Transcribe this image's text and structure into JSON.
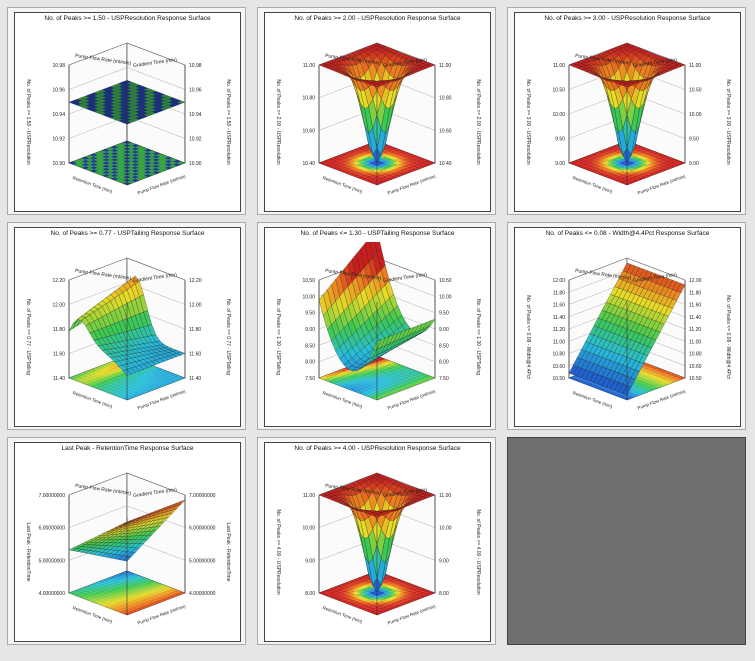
{
  "chart_data": [
    {
      "type": "surface",
      "title": "No. of Peaks >= 1.50 - USPResolution Response Surface",
      "surface": "flat",
      "palette": "blue-green",
      "factor_x": "Pump Flow Rate (ml/min)",
      "factor_y": "Gradient Time (min)",
      "factor_z": "Retention Time (min)",
      "zlabel": "No. of Peaks >= 1.50 - USPResolution",
      "zticks": [
        "10.98",
        "10.96",
        "10.94",
        "10.92",
        "10.90"
      ]
    },
    {
      "type": "surface",
      "title": "No. of Peaks >= 2.00 - USPResolution Response Surface",
      "surface": "cone",
      "palette": "rainbow",
      "factor_x": "Pump Flow Rate (ml/min)",
      "factor_y": "Gradient Time (min)",
      "factor_z": "Retention Time (min)",
      "zlabel": "No. of Peaks >= 2.00 - USPResolution",
      "zticks": [
        "11.00",
        "10.80",
        "10.60",
        "10.40"
      ]
    },
    {
      "type": "surface",
      "title": "No. of Peaks >= 3.00 - USPResolution Response Surface",
      "surface": "cone",
      "palette": "rainbow",
      "factor_x": "Pump Flow Rate (ml/min)",
      "factor_y": "Gradient Time (min)",
      "factor_z": "Retention Time (min)",
      "zlabel": "No. of Peaks >= 3.00 - USPResolution",
      "zticks": [
        "11.00",
        "10.50",
        "10.00",
        "9.50",
        "9.00"
      ]
    },
    {
      "type": "surface",
      "title": "No. of Peaks >= 0.77 - USPTailing Response Surface",
      "surface": "ridge",
      "palette": "rainbow",
      "factor_x": "Pump Flow Rate (ml/min)",
      "factor_y": "Gradient Time (min)",
      "factor_z": "Retention Time (min)",
      "zlabel": "No. of Peaks >= 0.77 - USPTailing",
      "zticks": [
        "12.20",
        "12.00",
        "11.80",
        "11.60",
        "11.40"
      ]
    },
    {
      "type": "surface",
      "title": "No. of Peaks <= 1.30 - USPTailing Response Surface",
      "surface": "saddle",
      "palette": "rainbow",
      "factor_x": "Pump Flow Rate (ml/min)",
      "factor_y": "Gradient Time (min)",
      "factor_z": "Retention Time (min)",
      "zlabel": "No. of Peaks <= 1.30 - USPTailing",
      "zticks": [
        "10.50",
        "10.00",
        "9.50",
        "9.00",
        "8.50",
        "8.00",
        "7.50"
      ]
    },
    {
      "type": "surface",
      "title": "No. of Peaks <= 0.08 - Width@4.4Pct Response Surface",
      "surface": "plane",
      "palette": "rainbow",
      "factor_x": "Pump Flow Rate (ml/min)",
      "factor_y": "Gradient Time (min)",
      "factor_z": "Retention Time (min)",
      "zlabel": "No. of Peaks <= 0.08 - Width@4.4Pct",
      "zticks": [
        "12.00",
        "11.80",
        "11.60",
        "11.40",
        "11.20",
        "11.00",
        "10.80",
        "10.60",
        "10.50"
      ]
    },
    {
      "type": "surface",
      "title": "Last Peak - RetentionTime Response Surface",
      "surface": "slope",
      "palette": "rainbow",
      "factor_x": "Pump Flow Rate (ml/min)",
      "factor_y": "Gradient Time (min)",
      "factor_z": "Retention Time (min)",
      "zlabel": "Last Peak - RetentionTime",
      "zticks": [
        "7.00000000",
        "6.00000000",
        "5.00000000",
        "4.00000000"
      ]
    },
    {
      "type": "surface",
      "title": "No. of Peaks >= 4.00 - USPResolution Response Surface",
      "surface": "cone",
      "palette": "rainbow",
      "factor_x": "Pump Flow Rate (ml/min)",
      "factor_y": "Gradient Time (min)",
      "factor_z": "Retention Time (min)",
      "zlabel": "No. of Peaks >= 4.00 - USPResolution",
      "zticks": [
        "11.00",
        "10.00",
        "9.00",
        "8.00"
      ]
    }
  ]
}
